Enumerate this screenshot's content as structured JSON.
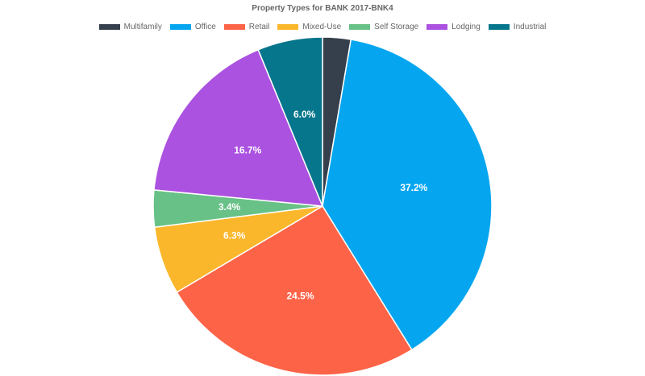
{
  "chart_data": {
    "type": "pie",
    "title": "Property Types for BANK 2017-BNK4",
    "legend_position": "top",
    "categories": [
      "Multifamily",
      "Office",
      "Retail",
      "Mixed-Use",
      "Self Storage",
      "Lodging",
      "Industrial"
    ],
    "values": [
      2.6,
      37.2,
      24.5,
      6.3,
      3.4,
      16.7,
      6.0
    ],
    "labels": [
      "",
      "37.2%",
      "24.5%",
      "6.3%",
      "3.4%",
      "16.7%",
      "6.0%"
    ],
    "colors": [
      "#36404c",
      "#05a6ef",
      "#fd6347",
      "#fbb72b",
      "#68c186",
      "#ab52e0",
      "#06768c"
    ]
  }
}
